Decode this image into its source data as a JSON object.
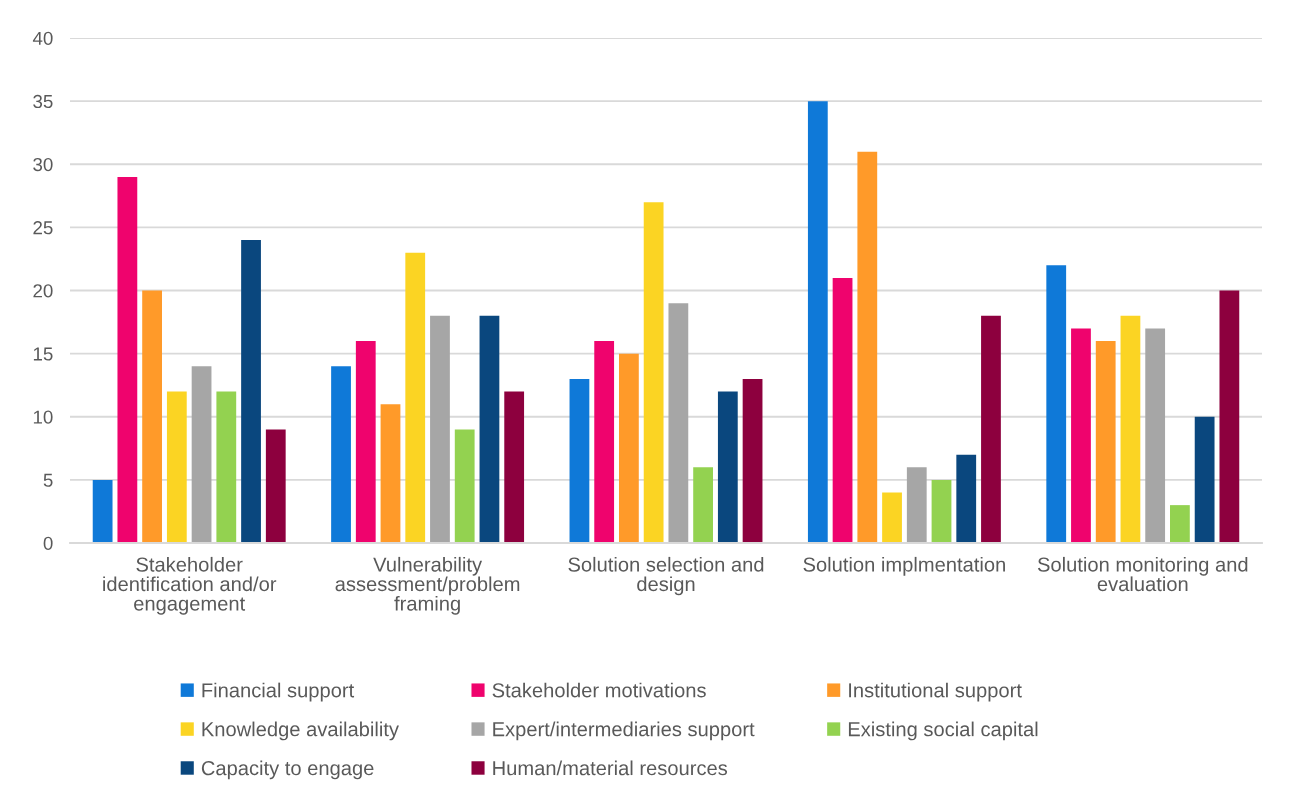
{
  "chart_data": {
    "type": "bar",
    "categories": [
      "Stakeholder identification and/or engagement",
      "Vulnerability assessment/problem framing",
      "Solution selection and design",
      "Solution implmentation",
      "Solution monitoring and evaluation"
    ],
    "series": [
      {
        "name": "Financial support",
        "color": "#0f79d8",
        "values": [
          5,
          14,
          13,
          35,
          22
        ]
      },
      {
        "name": "Stakeholder motivations",
        "color": "#ef036d",
        "values": [
          29,
          16,
          16,
          21,
          17
        ]
      },
      {
        "name": "Institutional support",
        "color": "#ff9a29",
        "values": [
          20,
          11,
          15,
          31,
          16
        ]
      },
      {
        "name": "Knowledge availability",
        "color": "#fbd423",
        "values": [
          12,
          23,
          27,
          4,
          18
        ]
      },
      {
        "name": "Expert/intermediaries support",
        "color": "#a6a6a6",
        "values": [
          14,
          18,
          19,
          6,
          17
        ]
      },
      {
        "name": "Existing social capital",
        "color": "#93d250",
        "values": [
          12,
          9,
          6,
          5,
          3
        ]
      },
      {
        "name": "Capacity to engage",
        "color": "#0a477e",
        "values": [
          24,
          18,
          12,
          7,
          10
        ]
      },
      {
        "name": "Human/material resources",
        "color": "#8d003e",
        "values": [
          9,
          12,
          13,
          18,
          20
        ]
      }
    ],
    "ylim": [
      0,
      40
    ],
    "yticks": [
      0,
      5,
      10,
      15,
      20,
      25,
      30,
      35,
      40
    ],
    "grid": "y",
    "legend": "bottom"
  }
}
